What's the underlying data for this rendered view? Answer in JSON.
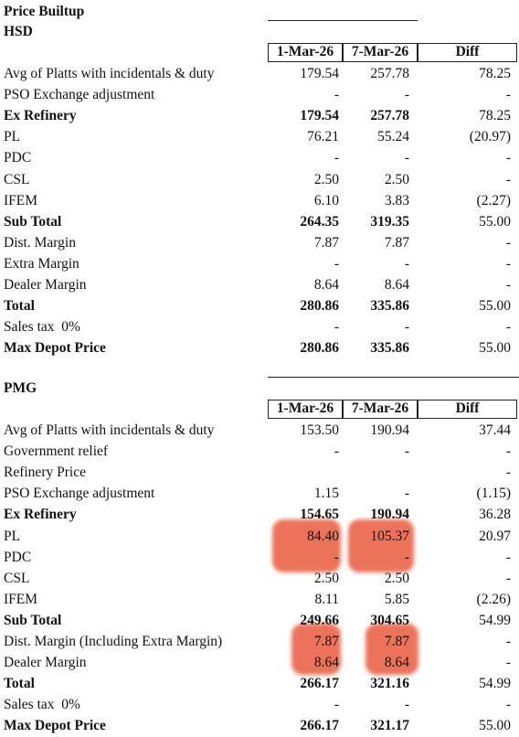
{
  "title": "Price Builtup",
  "sections": [
    {
      "name": "HSD",
      "header": [
        "1-Mar-26",
        "7-Mar-26",
        "Diff"
      ],
      "rows": [
        {
          "label": "Avg of Platts with incidentals & duty",
          "values": [
            "179.54",
            "257.78",
            "78.25"
          ],
          "bold": false
        },
        {
          "label": "PSO Exchange adjustment",
          "values": [
            "-",
            "-",
            "-"
          ],
          "bold": false
        },
        {
          "label": "Ex Refinery",
          "values": [
            "179.54",
            "257.78",
            "78.25"
          ],
          "bold": true
        },
        {
          "label": "PL",
          "values": [
            "76.21",
            "55.24",
            "(20.97)"
          ],
          "bold": false
        },
        {
          "label": "PDC",
          "values": [
            "-",
            "-",
            "-"
          ],
          "bold": false
        },
        {
          "label": "CSL",
          "values": [
            "2.50",
            "2.50",
            "-"
          ],
          "bold": false
        },
        {
          "label": "IFEM",
          "values": [
            "6.10",
            "3.83",
            "(2.27)"
          ],
          "bold": false
        },
        {
          "label": "Sub Total",
          "values": [
            "264.35",
            "319.35",
            "55.00"
          ],
          "bold": true
        },
        {
          "label": "Dist. Margin",
          "values": [
            "7.87",
            "7.87",
            "-"
          ],
          "bold": false
        },
        {
          "label": "Extra Margin",
          "values": [
            "-",
            "-",
            "-"
          ],
          "bold": false
        },
        {
          "label": "Dealer Margin",
          "values": [
            "8.64",
            "8.64",
            "-"
          ],
          "bold": false
        },
        {
          "label": "Total",
          "values": [
            "280.86",
            "335.86",
            "55.00"
          ],
          "bold": true
        },
        {
          "label": "Sales tax  0%",
          "values": [
            "-",
            "-",
            "-"
          ],
          "bold": false
        },
        {
          "label": "Max Depot Price",
          "values": [
            "280.86",
            "335.86",
            "55.00"
          ],
          "bold": true
        }
      ]
    },
    {
      "name": "PMG",
      "header": [
        "1-Mar-26",
        "7-Mar-26",
        "Diff"
      ],
      "rows": [
        {
          "label": "Avg of Platts with incidentals & duty",
          "values": [
            "153.50",
            "190.94",
            "37.44"
          ],
          "bold": false
        },
        {
          "label": "Government relief",
          "values": [
            "-",
            "-",
            "-"
          ],
          "bold": false
        },
        {
          "label": "Refinery Price",
          "values": [
            "",
            "",
            "-"
          ],
          "bold": false
        },
        {
          "label": "PSO Exchange adjustment",
          "values": [
            "1.15",
            "-",
            "(1.15)"
          ],
          "bold": false
        },
        {
          "label": "Ex Refinery",
          "values": [
            "154.65",
            "190.94",
            "36.28"
          ],
          "bold": true
        },
        {
          "label": "PL",
          "values": [
            "84.40",
            "105.37",
            "20.97"
          ],
          "bold": false
        },
        {
          "label": "PDC",
          "values": [
            "-",
            "-",
            "-"
          ],
          "bold": false
        },
        {
          "label": "CSL",
          "values": [
            "2.50",
            "2.50",
            "-"
          ],
          "bold": false
        },
        {
          "label": "IFEM",
          "values": [
            "8.11",
            "5.85",
            "(2.26)"
          ],
          "bold": false
        },
        {
          "label": "Sub Total",
          "values": [
            "249.66",
            "304.65",
            "54.99"
          ],
          "bold": true
        },
        {
          "label": "Dist. Margin (Including Extra Margin)",
          "values": [
            "7.87",
            "7.87",
            "-"
          ],
          "bold": false
        },
        {
          "label": "Dealer Margin",
          "values": [
            "8.64",
            "8.64",
            "-"
          ],
          "bold": false
        },
        {
          "label": "Total",
          "values": [
            "266.17",
            "321.16",
            "54.99"
          ],
          "bold": true
        },
        {
          "label": "Sales tax  0%",
          "values": [
            "-",
            "-",
            "-"
          ],
          "bold": false
        },
        {
          "label": "Max Depot Price",
          "values": [
            "266.17",
            "321.17",
            "55.00"
          ],
          "bold": true
        }
      ]
    }
  ]
}
